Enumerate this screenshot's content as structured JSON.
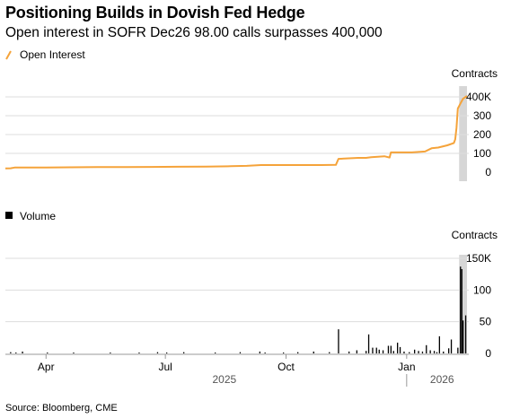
{
  "title": "Positioning Builds in Dovish Fed Hedge",
  "subtitle": "Open interest in SOFR Dec26 98.00 calls surpasses 400,000",
  "source": "Source: Bloomberg, CME",
  "colors": {
    "open_interest": "#f5a33a",
    "volume": "#000000",
    "grid": "#dddddd",
    "highlight": "#d6d6d6",
    "axis": "#999999"
  },
  "chart_data": [
    {
      "type": "line",
      "legend": "Open Interest",
      "legend_placement": "top-left",
      "unit_label": "Contracts",
      "y_ticks": [
        0,
        100,
        200,
        300,
        400
      ],
      "y_tick_labels": [
        "0",
        "100",
        "200",
        "300",
        "400K"
      ],
      "ylim": [
        0,
        400
      ],
      "grid": true,
      "x_range": [
        "2025-03-01",
        "2026-02-16"
      ],
      "highlight_range": [
        "2026-02-10",
        "2026-02-16"
      ],
      "series": [
        {
          "name": "Open Interest",
          "points": [
            [
              "2025-03-01",
              20
            ],
            [
              "2025-03-05",
              21
            ],
            [
              "2025-03-08",
              25
            ],
            [
              "2025-03-20",
              25
            ],
            [
              "2025-04-01",
              25
            ],
            [
              "2025-04-20",
              26
            ],
            [
              "2025-05-10",
              27
            ],
            [
              "2025-06-01",
              27
            ],
            [
              "2025-06-20",
              28
            ],
            [
              "2025-07-10",
              29
            ],
            [
              "2025-08-01",
              30
            ],
            [
              "2025-08-20",
              32
            ],
            [
              "2025-09-01",
              34
            ],
            [
              "2025-09-12",
              38
            ],
            [
              "2025-10-01",
              38
            ],
            [
              "2025-10-28",
              38
            ],
            [
              "2025-11-08",
              39
            ],
            [
              "2025-11-10",
              71
            ],
            [
              "2025-11-25",
              76
            ],
            [
              "2025-12-01",
              76
            ],
            [
              "2025-12-05",
              80
            ],
            [
              "2025-12-15",
              85
            ],
            [
              "2025-12-19",
              78
            ],
            [
              "2025-12-20",
              105
            ],
            [
              "2026-01-05",
              105
            ],
            [
              "2026-01-15",
              110
            ],
            [
              "2026-01-20",
              127
            ],
            [
              "2026-01-25",
              131
            ],
            [
              "2026-02-01",
              143
            ],
            [
              "2026-02-06",
              155
            ],
            [
              "2026-02-07",
              175
            ],
            [
              "2026-02-08",
              235
            ],
            [
              "2026-02-09",
              338
            ],
            [
              "2026-02-11",
              365
            ],
            [
              "2026-02-13",
              390
            ],
            [
              "2026-02-16",
              405
            ]
          ]
        }
      ]
    },
    {
      "type": "bar",
      "legend": "Volume",
      "legend_placement": "top-left",
      "unit_label": "Contracts",
      "y_ticks": [
        0,
        50,
        100,
        150
      ],
      "y_tick_labels": [
        "0",
        "50",
        "100",
        "150K"
      ],
      "ylim": [
        0,
        150
      ],
      "grid": true,
      "x_range": [
        "2025-03-01",
        "2026-02-16"
      ],
      "x_ticks": [
        "2025-04-01",
        "2025-07-01",
        "2025-10-01",
        "2026-01-01"
      ],
      "x_tick_labels": [
        "Apr",
        "Jul",
        "Oct",
        "Jan"
      ],
      "year_labels": [
        {
          "date": "2025-08-15",
          "label": "2025"
        },
        {
          "date": "2026-01-28",
          "label": "2026"
        }
      ],
      "year_divider": "2026-01-01",
      "highlight_range": [
        "2026-02-10",
        "2026-02-16"
      ],
      "series": [
        {
          "name": "Volume",
          "points": [
            [
              "2025-03-05",
              2
            ],
            [
              "2025-03-09",
              1
            ],
            [
              "2025-03-14",
              3
            ],
            [
              "2025-04-02",
              1
            ],
            [
              "2025-04-22",
              1
            ],
            [
              "2025-05-20",
              1
            ],
            [
              "2025-06-11",
              1
            ],
            [
              "2025-06-25",
              2
            ],
            [
              "2025-07-02",
              1
            ],
            [
              "2025-07-15",
              2
            ],
            [
              "2025-08-08",
              1
            ],
            [
              "2025-08-27",
              2
            ],
            [
              "2025-09-11",
              3
            ],
            [
              "2025-09-15",
              1
            ],
            [
              "2025-09-29",
              1
            ],
            [
              "2025-10-10",
              2
            ],
            [
              "2025-10-22",
              3
            ],
            [
              "2025-11-03",
              2
            ],
            [
              "2025-11-10",
              38
            ],
            [
              "2025-11-18",
              3
            ],
            [
              "2025-11-24",
              5
            ],
            [
              "2025-12-01",
              4
            ],
            [
              "2025-12-03",
              30
            ],
            [
              "2025-12-06",
              9
            ],
            [
              "2025-12-09",
              9
            ],
            [
              "2025-12-11",
              6
            ],
            [
              "2025-12-14",
              5
            ],
            [
              "2025-12-18",
              12
            ],
            [
              "2025-12-20",
              12
            ],
            [
              "2025-12-22",
              4
            ],
            [
              "2025-12-25",
              17
            ],
            [
              "2025-12-27",
              10
            ],
            [
              "2025-12-30",
              3
            ],
            [
              "2026-01-03",
              2
            ],
            [
              "2026-01-07",
              6
            ],
            [
              "2026-01-10",
              4
            ],
            [
              "2026-01-13",
              3
            ],
            [
              "2026-01-16",
              13
            ],
            [
              "2026-01-19",
              5
            ],
            [
              "2026-01-22",
              4
            ],
            [
              "2026-01-24",
              2
            ],
            [
              "2026-01-26",
              27
            ],
            [
              "2026-01-29",
              3
            ],
            [
              "2026-02-02",
              8
            ],
            [
              "2026-02-04",
              22
            ],
            [
              "2026-02-09",
              9
            ],
            [
              "2026-02-11",
              137
            ],
            [
              "2026-02-12",
              133
            ],
            [
              "2026-02-13",
              52
            ],
            [
              "2026-02-15",
              60
            ]
          ]
        }
      ]
    }
  ]
}
